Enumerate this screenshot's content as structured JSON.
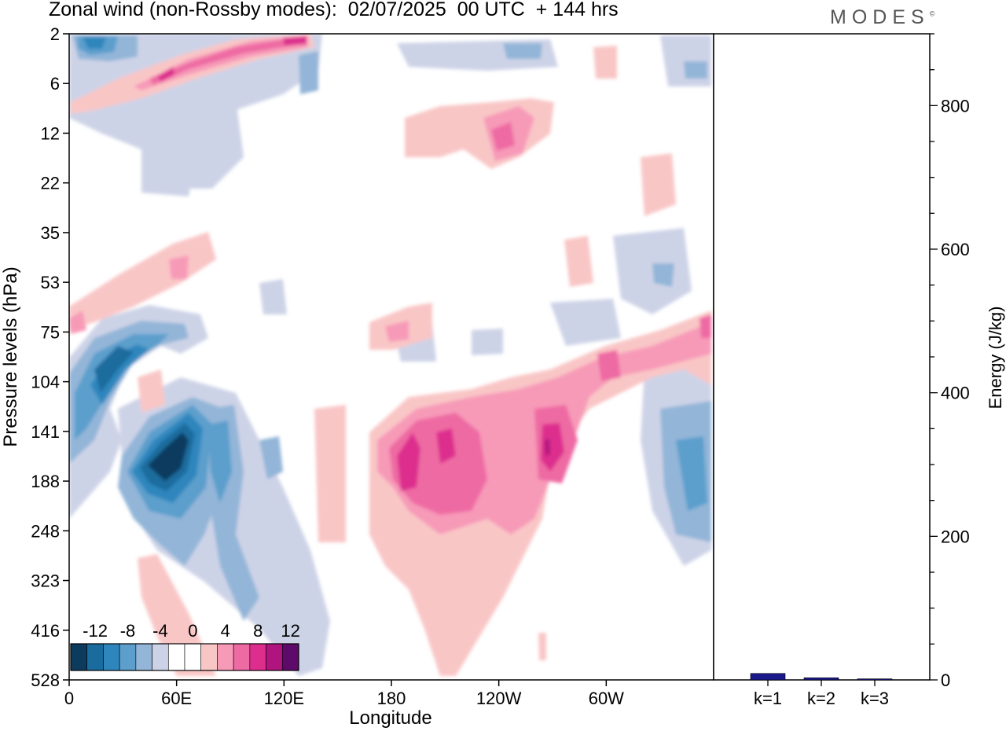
{
  "header": {
    "title": "Zonal wind (non-Rossby modes):  02/07/2025  00 UTC  + 144 hrs",
    "logo": "MODES",
    "logo_mark": "©"
  },
  "chart_data": [
    {
      "type": "heatmap",
      "title": "Zonal wind (non-Rossby modes):  02/07/2025  00 UTC  + 144 hrs",
      "xlabel": "Longitude",
      "ylabel": "Pressure levels (hPa)",
      "x_ticks": [
        "0",
        "60E",
        "120E",
        "180",
        "120W",
        "60W"
      ],
      "x_tick_degrees": [
        0,
        60,
        120,
        180,
        240,
        300
      ],
      "xlim": [
        0,
        360
      ],
      "y_ticks": [
        "2",
        "6",
        "12",
        "22",
        "35",
        "53",
        "75",
        "104",
        "141",
        "188",
        "248",
        "323",
        "416",
        "528"
      ],
      "colorbar": {
        "labels": [
          "-12",
          "-8",
          "-4",
          "0",
          "4",
          "8",
          "12"
        ],
        "levels": [
          -14,
          -12,
          -10,
          -8,
          -6,
          -4,
          -2,
          0,
          2,
          4,
          6,
          8,
          10,
          12,
          14
        ],
        "colors": [
          "#0d3b5e",
          "#1a6c9e",
          "#2f86bd",
          "#5c9fcc",
          "#93b5d8",
          "#cdd3e7",
          "#ffffff",
          "#ffffff",
          "#f9c6c6",
          "#f79ab8",
          "#ee6aa3",
          "#dd2e8e",
          "#b0147e",
          "#5e0a6b"
        ]
      },
      "features": [
        {
          "sign": "negative",
          "region": "upper-left band",
          "lon": [
            5,
            130
          ],
          "levels": [
            "2",
            "12"
          ],
          "peak": -10
        },
        {
          "sign": "positive",
          "region": "upper diagonal band",
          "lon": [
            5,
            135
          ],
          "levels": [
            "2",
            "6"
          ],
          "peak": 10
        },
        {
          "sign": "negative",
          "region": "left lower core",
          "lon": [
            15,
            95
          ],
          "levels": [
            "75",
            "248"
          ],
          "peak": -14
        },
        {
          "sign": "positive",
          "region": "central lower core",
          "lon": [
            170,
            275
          ],
          "levels": [
            "104",
            "528"
          ],
          "peak": 12
        },
        {
          "sign": "positive",
          "region": "upper central patch",
          "lon": [
            190,
            260
          ],
          "levels": [
            "6",
            "22"
          ],
          "peak": 6
        },
        {
          "sign": "negative",
          "region": "right lower patch",
          "lon": [
            325,
            360
          ],
          "levels": [
            "104",
            "323"
          ],
          "peak": -8
        },
        {
          "sign": "positive",
          "region": "upper right tilt band",
          "lon": [
            280,
            360
          ],
          "levels": [
            "75",
            "141"
          ],
          "peak": 6
        }
      ]
    },
    {
      "type": "bar",
      "ylabel": "Energy (J/kg)",
      "ylim": [
        0,
        900
      ],
      "y_ticks": [
        "0",
        "200",
        "400",
        "600",
        "800"
      ],
      "categories": [
        "k=1",
        "k=2",
        "k=3"
      ],
      "values": [
        9,
        3,
        1.5
      ],
      "color": "#1a1a8c"
    }
  ]
}
